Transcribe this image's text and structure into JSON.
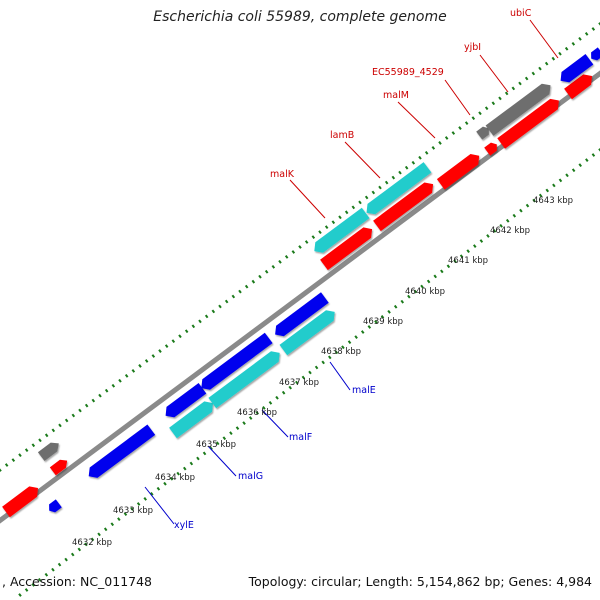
{
  "title": "Escherichia coli 55989, complete genome",
  "footer": {
    "accession": ", Accession: NC_011748",
    "summary": "Topology: circular; Length: 5,154,862 bp; Genes: 4,984"
  },
  "colors": {
    "backbone": "#8a8a8a",
    "tick": "#1a7a1a",
    "red_gene": "#ff0000",
    "blue_gene": "#0000ee",
    "cyan_gene": "#22cccc",
    "gray_gene": "#6e6e6e",
    "top_label": "#cc0000",
    "bottom_label": "#0000cc"
  },
  "kbp_labels": [
    "4632 kbp",
    "4633 kbp",
    "4634 kbp",
    "4635 kbp",
    "4636 kbp",
    "4637 kbp",
    "4638 kbp",
    "4639 kbp",
    "4640 kbp",
    "4641 kbp",
    "4642 kbp",
    "4643 kbp"
  ],
  "top_gene_labels": [
    "malK",
    "lamB",
    "malM",
    "EC55989_4529",
    "yjbI",
    "ubiC"
  ],
  "bottom_gene_labels": [
    "malE",
    "malF",
    "malG",
    "xylE"
  ]
}
